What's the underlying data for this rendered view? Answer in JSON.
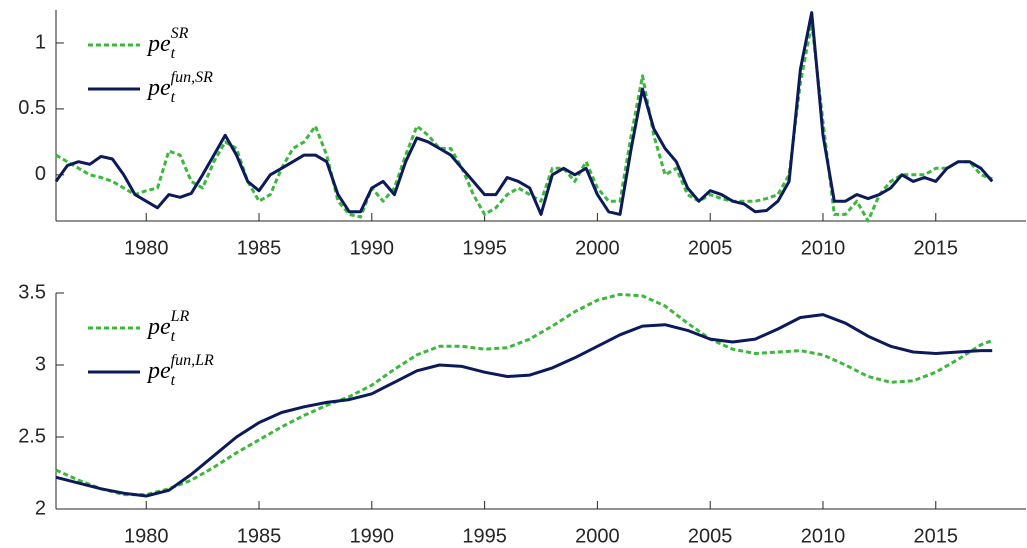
{
  "chart_data": [
    {
      "type": "line",
      "x": [
        1976,
        1976.5,
        1977,
        1977.5,
        1978,
        1978.5,
        1979,
        1979.5,
        1980,
        1980.5,
        1981,
        1981.5,
        1982,
        1982.5,
        1983,
        1983.5,
        1984,
        1984.5,
        1985,
        1985.5,
        1986,
        1986.5,
        1987,
        1987.5,
        1988,
        1988.5,
        1989,
        1989.5,
        1990,
        1990.5,
        1991,
        1991.5,
        1992,
        1992.5,
        1993,
        1993.5,
        1994,
        1994.5,
        1995,
        1995.5,
        1996,
        1996.5,
        1997,
        1997.5,
        1998,
        1998.5,
        1999,
        1999.5,
        2000,
        2000.5,
        2001,
        2001.5,
        2002,
        2002.5,
        2003,
        2003.5,
        2004,
        2004.5,
        2005,
        2005.5,
        2006,
        2006.5,
        2007,
        2007.5,
        2008,
        2008.5,
        2009,
        2009.5,
        2010,
        2010.5,
        2011,
        2011.5,
        2012,
        2012.5,
        2013,
        2013.5,
        2014,
        2014.5,
        2015,
        2015.5,
        2016,
        2016.5,
        2017,
        2017.5
      ],
      "series": [
        {
          "name": "pe",
          "sub": "t",
          "sup": "SR",
          "color": "#3cb83c",
          "dash": true,
          "values": [
            0.15,
            0.1,
            0.05,
            0.0,
            -0.02,
            -0.05,
            -0.1,
            -0.15,
            -0.12,
            -0.1,
            0.18,
            0.15,
            -0.05,
            -0.1,
            0.1,
            0.25,
            0.2,
            -0.05,
            -0.2,
            -0.15,
            0.05,
            0.2,
            0.25,
            0.37,
            0.15,
            -0.2,
            -0.3,
            -0.32,
            -0.1,
            -0.2,
            -0.1,
            0.15,
            0.37,
            0.3,
            0.2,
            0.2,
            0.05,
            -0.15,
            -0.3,
            -0.25,
            -0.15,
            -0.1,
            -0.15,
            -0.2,
            0.05,
            0.05,
            -0.05,
            0.1,
            -0.1,
            -0.2,
            -0.2,
            0.3,
            0.75,
            0.3,
            0.0,
            0.05,
            -0.15,
            -0.2,
            -0.15,
            -0.18,
            -0.2,
            -0.2,
            -0.2,
            -0.18,
            -0.15,
            0.0,
            0.7,
            1.15,
            0.4,
            -0.3,
            -0.3,
            -0.2,
            -0.35,
            -0.15,
            -0.05,
            0.0,
            0.0,
            0.0,
            0.05,
            0.05,
            0.1,
            0.1,
            0.0,
            -0.03
          ]
        },
        {
          "name": "pe",
          "sub": "t",
          "sup": "fun,SR",
          "color": "#0c1a5a",
          "dash": false,
          "values": [
            -0.05,
            0.07,
            0.1,
            0.08,
            0.14,
            0.12,
            0.0,
            -0.15,
            -0.2,
            -0.25,
            -0.15,
            -0.17,
            -0.14,
            0.0,
            0.15,
            0.3,
            0.15,
            -0.05,
            -0.12,
            0.0,
            0.05,
            0.1,
            0.15,
            0.15,
            0.1,
            -0.15,
            -0.28,
            -0.28,
            -0.1,
            -0.05,
            -0.15,
            0.1,
            0.28,
            0.25,
            0.2,
            0.15,
            0.05,
            -0.05,
            -0.15,
            -0.15,
            -0.02,
            -0.05,
            -0.1,
            -0.3,
            0.0,
            0.05,
            0.0,
            0.05,
            -0.15,
            -0.28,
            -0.3,
            0.2,
            0.65,
            0.35,
            0.2,
            0.1,
            -0.1,
            -0.2,
            -0.12,
            -0.15,
            -0.2,
            -0.22,
            -0.28,
            -0.27,
            -0.2,
            -0.05,
            0.8,
            1.23,
            0.3,
            -0.2,
            -0.2,
            -0.15,
            -0.18,
            -0.15,
            -0.1,
            0.0,
            -0.05,
            -0.02,
            -0.05,
            0.05,
            0.1,
            0.1,
            0.05,
            -0.05
          ]
        }
      ],
      "xlim": [
        1976,
        2019
      ],
      "xticks": [
        1980,
        1985,
        1990,
        1995,
        2000,
        2005,
        2010,
        2015
      ],
      "ylim": [
        -0.35,
        1.25
      ],
      "yticks": [
        0,
        0.5,
        1
      ],
      "legend": "upper left"
    },
    {
      "type": "line",
      "x": [
        1976,
        1977,
        1978,
        1979,
        1980,
        1981,
        1982,
        1983,
        1984,
        1985,
        1986,
        1987,
        1988,
        1989,
        1990,
        1991,
        1992,
        1993,
        1994,
        1995,
        1996,
        1997,
        1998,
        1999,
        2000,
        2001,
        2002,
        2003,
        2004,
        2005,
        2006,
        2007,
        2008,
        2009,
        2010,
        2011,
        2012,
        2013,
        2014,
        2015,
        2016,
        2017,
        2017.5
      ],
      "series": [
        {
          "name": "pe",
          "sub": "t",
          "sup": "LR",
          "color": "#3cb83c",
          "dash": true,
          "values": [
            2.27,
            2.2,
            2.14,
            2.1,
            2.1,
            2.14,
            2.2,
            2.29,
            2.39,
            2.48,
            2.57,
            2.65,
            2.72,
            2.78,
            2.86,
            2.97,
            3.07,
            3.13,
            3.13,
            3.11,
            3.12,
            3.18,
            3.27,
            3.37,
            3.45,
            3.49,
            3.48,
            3.41,
            3.29,
            3.18,
            3.11,
            3.08,
            3.09,
            3.1,
            3.07,
            3.0,
            2.92,
            2.88,
            2.89,
            2.95,
            3.04,
            3.14,
            3.17
          ]
        },
        {
          "name": "pe",
          "sub": "t",
          "sup": "fun,LR",
          "color": "#0c1a5a",
          "dash": false,
          "values": [
            2.22,
            2.18,
            2.14,
            2.11,
            2.09,
            2.13,
            2.24,
            2.37,
            2.5,
            2.6,
            2.67,
            2.71,
            2.74,
            2.76,
            2.8,
            2.88,
            2.96,
            3.0,
            2.99,
            2.95,
            2.92,
            2.93,
            2.98,
            3.05,
            3.13,
            3.21,
            3.27,
            3.28,
            3.24,
            3.18,
            3.16,
            3.18,
            3.25,
            3.33,
            3.35,
            3.29,
            3.2,
            3.13,
            3.09,
            3.08,
            3.09,
            3.1,
            3.1
          ]
        }
      ],
      "xlim": [
        1976,
        2019
      ],
      "xticks": [
        1980,
        1985,
        1990,
        1995,
        2000,
        2005,
        2010,
        2015
      ],
      "ylim": [
        2,
        3.5
      ],
      "yticks": [
        2,
        2.5,
        3,
        3.5
      ],
      "legend": "upper left"
    }
  ]
}
